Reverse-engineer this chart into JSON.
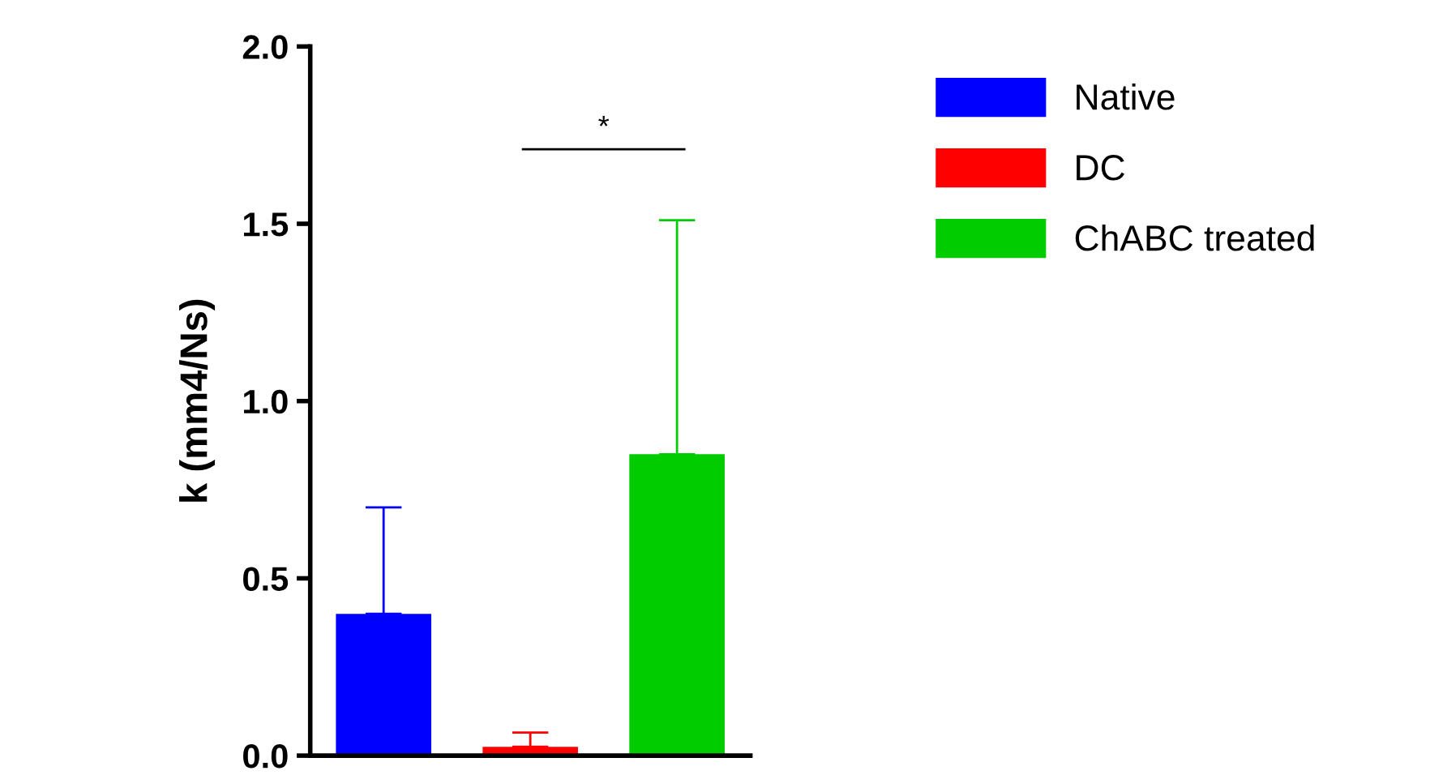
{
  "chart_data": {
    "type": "bar",
    "ylabel": "k (mm4/Ns)",
    "categories": [
      null,
      null,
      null
    ],
    "series": [
      {
        "name": "Native",
        "color": "#0000ff",
        "values": [
          0.4,
          null,
          null
        ],
        "errors": [
          [
            0.4,
            0.7
          ],
          null,
          null
        ]
      },
      {
        "name": "DC",
        "color": "#ff0000",
        "values": [
          null,
          0.025,
          null
        ],
        "errors": [
          null,
          [
            0.025,
            0.065
          ],
          null
        ]
      },
      {
        "name": "ChABC treated",
        "color": "#00cc00",
        "values": [
          null,
          null,
          0.85
        ],
        "errors": [
          null,
          null,
          [
            0.85,
            1.51
          ]
        ]
      }
    ],
    "ylim": [
      0,
      2.0
    ],
    "yticks": [
      {
        "value": 0,
        "label": "0.0"
      },
      0.5,
      {
        "value": 1,
        "label": "1.0"
      },
      1.5,
      {
        "value": 2,
        "label": "2.0"
      }
    ],
    "grid": false,
    "legend": "right",
    "annotations": [
      "*"
    ]
  }
}
